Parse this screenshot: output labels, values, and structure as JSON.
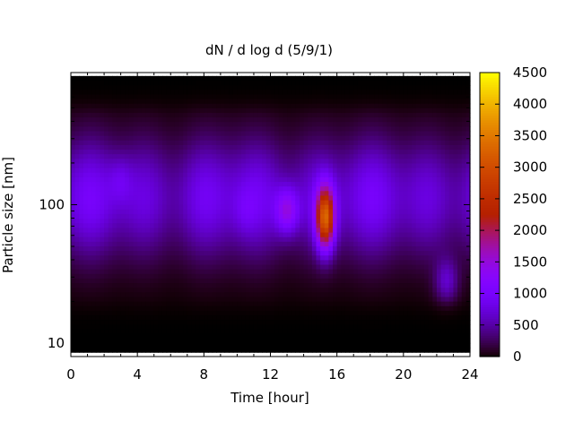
{
  "chart_data": {
    "type": "heatmap",
    "title": "dN / d log d (5/9/1)",
    "xlabel": "Time [hour]",
    "ylabel": "Particle size [nm]",
    "xlim": [
      0,
      24
    ],
    "ylim": [
      8,
      900
    ],
    "yscale": "log",
    "xticks": [
      0,
      4,
      8,
      12,
      16,
      20,
      24
    ],
    "xtick_labels": [
      "0",
      "4",
      "8",
      "12",
      "16",
      "20",
      "24"
    ],
    "yticks": [
      10,
      100
    ],
    "ytick_labels": [
      "10",
      "100"
    ],
    "colorbar": {
      "min": 0,
      "max": 4500,
      "ticks": [
        0,
        500,
        1000,
        1500,
        2000,
        2500,
        3000,
        3500,
        4000,
        4500
      ],
      "tick_labels": [
        "0",
        "500",
        "1000",
        "1500",
        "2000",
        "2500",
        "3000",
        "3500",
        "4000",
        "4500"
      ],
      "colormap": "gnuplot-pm3d"
    },
    "features": [
      {
        "time_hour": 15.3,
        "size_nm": 80,
        "peak_value": 3600
      },
      {
        "time_hour": 13.0,
        "size_nm": 90,
        "peak_value": 1800
      },
      {
        "time_hour": 22.6,
        "size_nm": 28,
        "peak_value": 1400
      },
      {
        "time_hour": 3.0,
        "size_nm": 150,
        "peak_value": 1100
      },
      {
        "time_hour": 10.5,
        "size_nm": 90,
        "peak_value": 1000
      }
    ],
    "grid": false
  }
}
